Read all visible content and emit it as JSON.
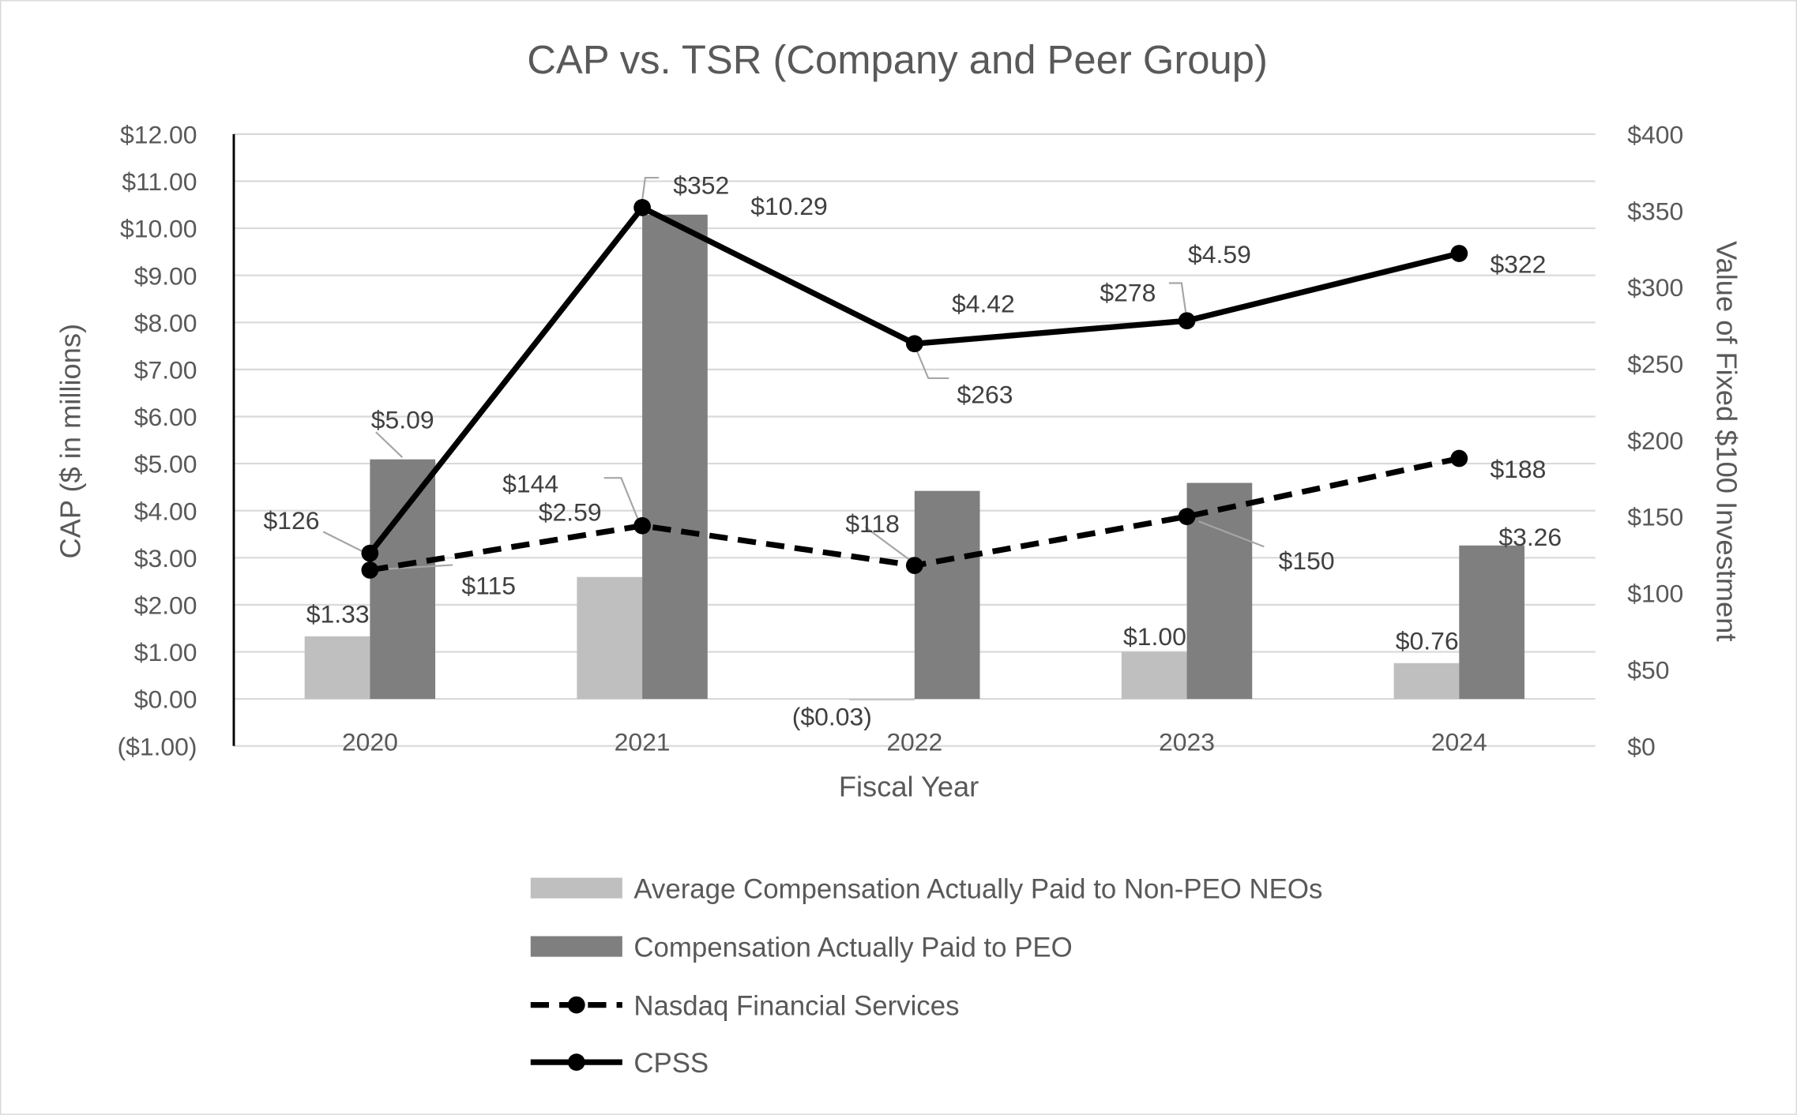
{
  "chart_data": {
    "type": "bar",
    "title": "CAP vs. TSR (Company and Peer Group)",
    "xlabel": "Fiscal Year",
    "ylabel": "CAP ($ in millions)",
    "y2label": "Value of Fixed $100 Investment",
    "categories": [
      "2020",
      "2021",
      "2022",
      "2023",
      "2024"
    ],
    "ylim": [
      -1,
      12
    ],
    "y2lim": [
      0,
      400
    ],
    "yticks": [
      "($1.00)",
      "$0.00",
      "$1.00",
      "$2.00",
      "$3.00",
      "$4.00",
      "$5.00",
      "$6.00",
      "$7.00",
      "$8.00",
      "$9.00",
      "$10.00",
      "$11.00",
      "$12.00"
    ],
    "y2ticks": [
      "$0",
      "$50",
      "$100",
      "$150",
      "$200",
      "$250",
      "$300",
      "$350",
      "$400"
    ],
    "grid": true,
    "legend_position": "bottom",
    "series": [
      {
        "name": "Average Compensation Actually Paid to Non-PEO NEOs",
        "type": "bar",
        "axis": "left",
        "color": "#bfbfbf",
        "values": [
          1.33,
          2.59,
          -0.03,
          1.0,
          0.76
        ],
        "labels": [
          "$1.33",
          "$2.59",
          "($0.03)",
          "$1.00",
          "$0.76"
        ]
      },
      {
        "name": "Compensation Actually Paid to PEO",
        "type": "bar",
        "axis": "left",
        "color": "#7f7f7f",
        "values": [
          5.09,
          10.29,
          4.42,
          4.59,
          3.26
        ],
        "labels": [
          "$5.09",
          "$10.29",
          "$4.42",
          "$4.59",
          "$3.26"
        ]
      },
      {
        "name": "Nasdaq Financial Services",
        "type": "line",
        "style": "dashed",
        "axis": "right",
        "color": "#000000",
        "values": [
          115,
          144,
          118,
          150,
          188
        ],
        "labels": [
          "$115",
          "$144",
          "$118",
          "$150",
          "$188"
        ]
      },
      {
        "name": "CPSS",
        "type": "line",
        "style": "solid",
        "axis": "right",
        "color": "#000000",
        "values": [
          126,
          352,
          263,
          278,
          322
        ],
        "labels": [
          "$126",
          "$352",
          "$263",
          "$278",
          "$322"
        ]
      }
    ]
  }
}
